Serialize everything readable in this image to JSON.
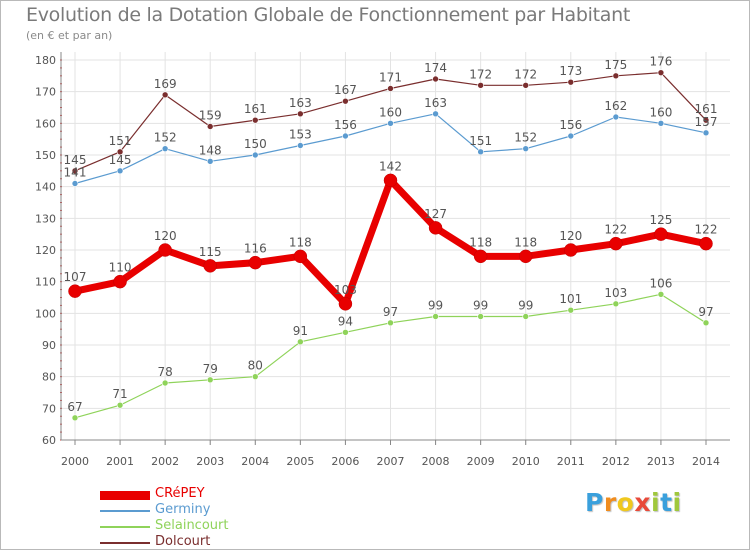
{
  "title": "Evolution de la Dotation Globale de Fonctionnement par Habitant",
  "subtitle": "(en € et par an)",
  "logo": {
    "letters": [
      "P",
      "r",
      "o",
      "x",
      "i",
      "t",
      "i"
    ],
    "colors": [
      "#3aa0dc",
      "#f08c1e",
      "#f0c81e",
      "#e84a3a",
      "#a0c83c",
      "#3aa0dc",
      "#a0c83c"
    ]
  },
  "chart_data": {
    "type": "line",
    "title": "Evolution de la Dotation Globale de Fonctionnement par Habitant",
    "ylabel": "(en € et par an)",
    "xlabel": "",
    "x": [
      "2000",
      "2001",
      "2002",
      "2003",
      "2004",
      "2005",
      "2006",
      "2007",
      "2008",
      "2009",
      "2010",
      "2011",
      "2012",
      "2013",
      "2014"
    ],
    "ylim": [
      60,
      180
    ],
    "yticks": [
      60,
      70,
      80,
      90,
      100,
      110,
      120,
      130,
      140,
      150,
      160,
      170,
      180
    ],
    "grid": true,
    "series": [
      {
        "name": "CRéPEY",
        "color": "#e80000",
        "values": [
          107,
          110,
          120,
          115,
          116,
          118,
          103,
          142,
          127,
          118,
          118,
          120,
          122,
          125,
          122
        ]
      },
      {
        "name": "Germiny",
        "color": "#5b9bd0",
        "values": [
          141,
          145,
          152,
          148,
          150,
          153,
          156,
          160,
          163,
          151,
          152,
          156,
          162,
          160,
          157
        ]
      },
      {
        "name": "Selaincourt",
        "color": "#8fd35a",
        "values": [
          67,
          71,
          78,
          79,
          80,
          91,
          94,
          97,
          99,
          99,
          99,
          101,
          103,
          106,
          97
        ]
      },
      {
        "name": "Dolcourt",
        "color": "#7a2e2e",
        "values": [
          145,
          151,
          169,
          159,
          161,
          163,
          167,
          171,
          174,
          172,
          172,
          173,
          175,
          176,
          161
        ]
      }
    ]
  }
}
